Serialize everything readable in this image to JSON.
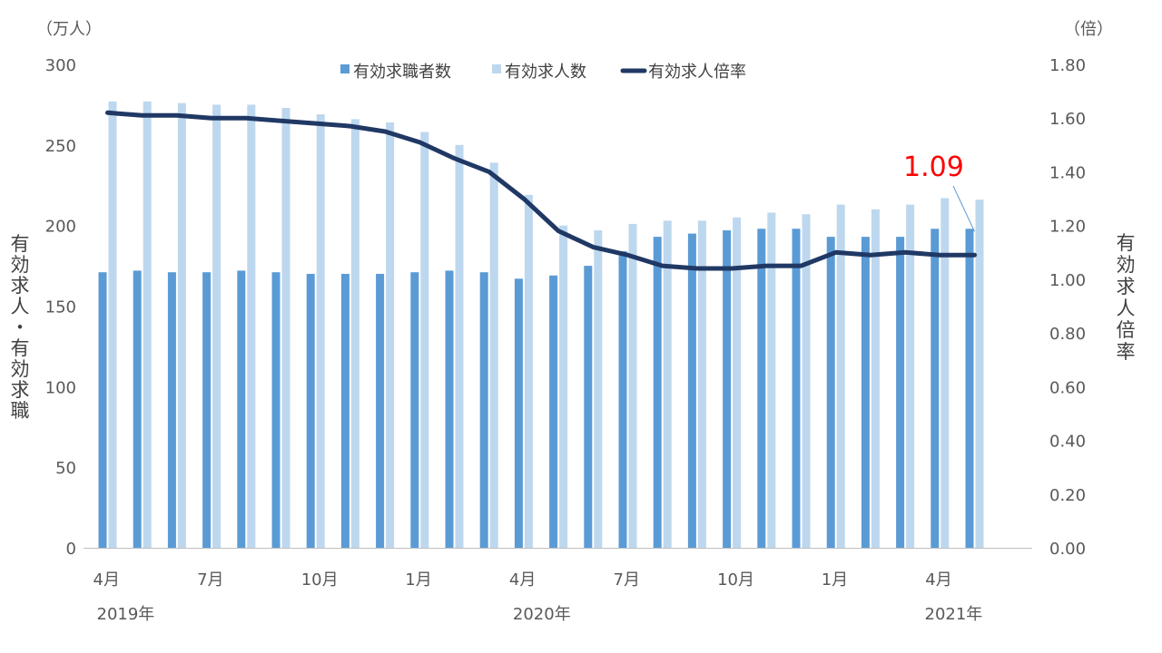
{
  "chart_data": {
    "type": "bar+line",
    "unit_left": "（万人）",
    "unit_right": "（倍）",
    "ylabel_left": "有効求人・有効求職",
    "ylabel_right": "有効求人倍率",
    "ylim_left": [
      0,
      300
    ],
    "ylim_right": [
      0,
      1.8
    ],
    "yticks_left": [
      "0",
      "50",
      "100",
      "150",
      "200",
      "250",
      "300"
    ],
    "yticks_right": [
      "0.00",
      "0.20",
      "0.40",
      "0.60",
      "0.80",
      "1.00",
      "1.20",
      "1.40",
      "1.60",
      "1.80"
    ],
    "x_tick_labels": [
      {
        "index": 0,
        "label": "4月"
      },
      {
        "index": 3,
        "label": "7月"
      },
      {
        "index": 6,
        "label": "10月"
      },
      {
        "index": 9,
        "label": "1月"
      },
      {
        "index": 12,
        "label": "4月"
      },
      {
        "index": 15,
        "label": "7月"
      },
      {
        "index": 18,
        "label": "10月"
      },
      {
        "index": 21,
        "label": "1月"
      },
      {
        "index": 24,
        "label": "4月"
      }
    ],
    "year_labels": [
      {
        "index": 0,
        "label": "2019年"
      },
      {
        "index": 12,
        "label": "2020年"
      },
      {
        "index": 25,
        "label": "2021年"
      }
    ],
    "categories": [
      "2019-04",
      "2019-05",
      "2019-06",
      "2019-07",
      "2019-08",
      "2019-09",
      "2019-10",
      "2019-11",
      "2019-12",
      "2020-01",
      "2020-02",
      "2020-03",
      "2020-04",
      "2020-05",
      "2020-06",
      "2020-07",
      "2020-08",
      "2020-09",
      "2020-10",
      "2020-11",
      "2020-12",
      "2021-01",
      "2021-02",
      "2021-03",
      "2021-04",
      "2021-05"
    ],
    "series": [
      {
        "name": "有効求職者数",
        "type": "bar",
        "color": "#5b9bd5",
        "values": [
          171,
          172,
          171,
          171,
          172,
          171,
          170,
          170,
          170,
          171,
          172,
          171,
          167,
          169,
          175,
          184,
          193,
          195,
          197,
          198,
          198,
          193,
          193,
          193,
          198,
          198
        ]
      },
      {
        "name": "有効求人数",
        "type": "bar",
        "color": "#bdd7ee",
        "values": [
          277,
          277,
          276,
          275,
          275,
          273,
          269,
          266,
          264,
          258,
          250,
          239,
          219,
          200,
          197,
          201,
          203,
          203,
          205,
          208,
          207,
          213,
          210,
          213,
          217,
          216
        ]
      },
      {
        "name": "有効求人倍率",
        "type": "line",
        "axis": "right",
        "color": "#203864",
        "values": [
          1.62,
          1.61,
          1.61,
          1.6,
          1.6,
          1.59,
          1.58,
          1.57,
          1.55,
          1.51,
          1.45,
          1.4,
          1.3,
          1.18,
          1.12,
          1.09,
          1.05,
          1.04,
          1.04,
          1.05,
          1.05,
          1.1,
          1.09,
          1.1,
          1.09,
          1.09
        ]
      }
    ],
    "annotation": {
      "index": 25,
      "text": "1.09",
      "color": "#ff0000"
    },
    "legend_position": "top"
  }
}
